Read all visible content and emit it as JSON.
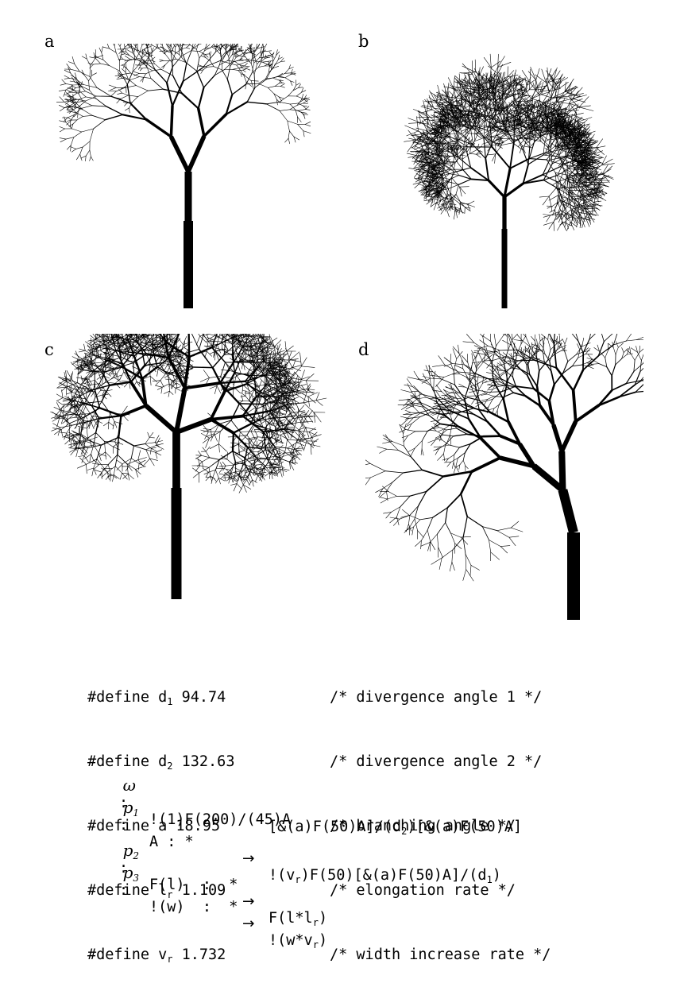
{
  "panels": [
    {
      "id": "a",
      "label": "a"
    },
    {
      "id": "b",
      "label": "b"
    },
    {
      "id": "c",
      "label": "c"
    },
    {
      "id": "d",
      "label": "d"
    }
  ],
  "defines": [
    {
      "keyword": "#define",
      "name": "d",
      "sub": "1",
      "value": "94.74",
      "comment": "/* divergence angle 1 */"
    },
    {
      "keyword": "#define",
      "name": "d",
      "sub": "2",
      "value": "132.63",
      "comment": "/* divergence angle 2 */"
    },
    {
      "keyword": "#define",
      "name": "a",
      "sub": "",
      "value": "18.95",
      "comment": "/* branching angle */"
    },
    {
      "keyword": "#define",
      "name": "l",
      "sub": "r",
      "value": "1.109",
      "comment": "/* elongation rate */"
    },
    {
      "keyword": "#define",
      "name": "v",
      "sub": "r",
      "value": "1.732",
      "comment": "/* width increase rate */"
    }
  ],
  "productions": {
    "omega": {
      "symbol": "ω",
      "colon": ":",
      "rhs": "!(1)F(200)/(45)A"
    },
    "p1": {
      "symbol": "p",
      "sub": "1",
      "colon": ":",
      "pred": "A : *",
      "arrow": "→",
      "rhs1_a": "!(v",
      "rhs1_sub_a": "r",
      "rhs1_b": ")F(50)[&(a)F(50)A]/(d",
      "rhs1_sub_b": "1",
      "rhs1_c": ")",
      "rhs2_a": "[&(a)F(50)A]/(d",
      "rhs2_sub_a": "2",
      "rhs2_b": ")[&(a)F(50)A]"
    },
    "p2": {
      "symbol": "p",
      "sub": "2",
      "colon": ":",
      "pred": "F(l)  :  *",
      "arrow": "→",
      "rhs_a": "F(l*l",
      "rhs_sub": "r",
      "rhs_b": ")"
    },
    "p3": {
      "symbol": "p",
      "sub": "3",
      "colon": ":",
      "pred": "!(w)  :  *",
      "arrow": "→",
      "rhs_a": "!(w*v",
      "rhs_sub": "r",
      "rhs_b": ")"
    }
  }
}
